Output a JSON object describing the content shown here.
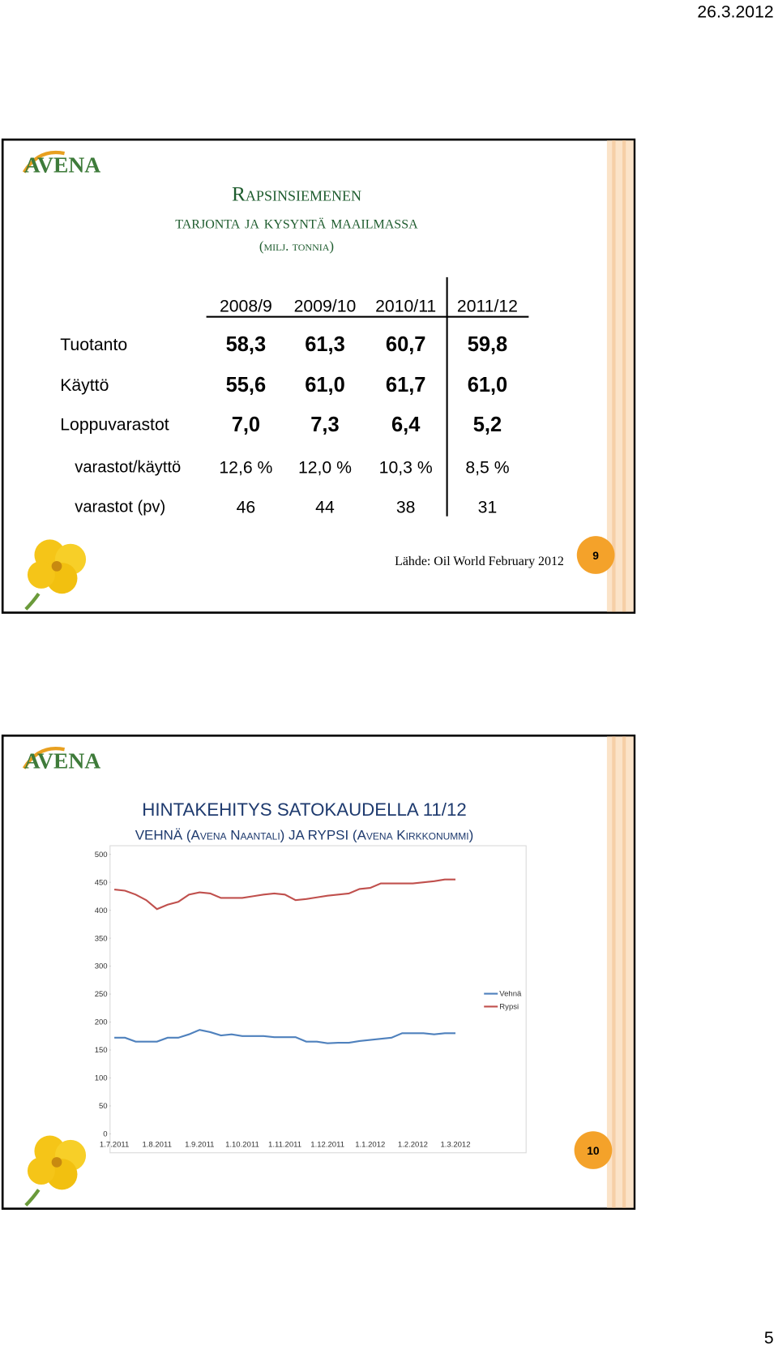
{
  "date": "26.3.2012",
  "page_number": "5",
  "slides": [
    {
      "logo": "AVENA",
      "title": [
        "Rapsinsiemenen",
        "tarjonta ja kysyntä maailmassa",
        "(milj. tonnia)"
      ],
      "table": {
        "columns": [
          "2008/9",
          "2009/10",
          "2010/11",
          "2011/12"
        ],
        "rows": [
          {
            "label": "Tuotanto",
            "values": [
              "58,3",
              "61,3",
              "60,7",
              "59,8"
            ]
          },
          {
            "label": "Käyttö",
            "values": [
              "55,6",
              "61,0",
              "61,7",
              "61,0"
            ]
          },
          {
            "label": "Loppuvarastot",
            "values": [
              "7,0",
              "7,3",
              "6,4",
              "5,2"
            ]
          },
          {
            "label": "varastot/käyttö",
            "values": [
              "12,6 %",
              "12,0 %",
              "10,3 %",
              "8,5 %"
            ]
          },
          {
            "label": "varastot (pv)",
            "values": [
              "46",
              "44",
              "38",
              "31"
            ]
          }
        ]
      },
      "source": "Lähde: Oil World February 2012",
      "number": "9"
    },
    {
      "logo": "AVENA",
      "title": "HINTAKEHITYS SATOKAUDELLA 11/12",
      "subtitle": "VEHNÄ (Avena Naantali) JA RYPSI (Avena Kirkkonummi)",
      "number": "10"
    }
  ],
  "chart_data": {
    "type": "line",
    "categories": [
      "1.7.2011",
      null,
      null,
      null,
      "1.8.2011",
      null,
      null,
      null,
      "1.9.2011",
      null,
      null,
      null,
      "1.10.2011",
      null,
      null,
      null,
      "1.11.2011",
      null,
      null,
      null,
      "1.12.2011",
      null,
      null,
      null,
      "1.1.2012",
      null,
      null,
      null,
      "1.2.2012",
      null,
      null,
      null,
      "1.3.2012"
    ],
    "series": [
      {
        "name": "Vehnä",
        "color": "#4f81bd",
        "values": [
          172,
          172,
          165,
          165,
          165,
          172,
          172,
          178,
          186,
          182,
          176,
          178,
          175,
          175,
          175,
          173,
          173,
          173,
          165,
          165,
          162,
          163,
          163,
          166,
          168,
          170,
          172,
          180,
          180,
          180,
          178,
          180,
          180
        ]
      },
      {
        "name": "Rypsi",
        "color": "#c0504d",
        "values": [
          437,
          435,
          428,
          418,
          402,
          410,
          415,
          428,
          432,
          430,
          422,
          422,
          422,
          425,
          428,
          430,
          428,
          418,
          420,
          423,
          426,
          428,
          430,
          438,
          440,
          448,
          448,
          448,
          448,
          450,
          452,
          455,
          455
        ]
      }
    ],
    "ylim": [
      0,
      500
    ],
    "yticks": [
      0,
      50,
      100,
      150,
      200,
      250,
      300,
      350,
      400,
      450,
      500
    ],
    "legend": "right"
  }
}
